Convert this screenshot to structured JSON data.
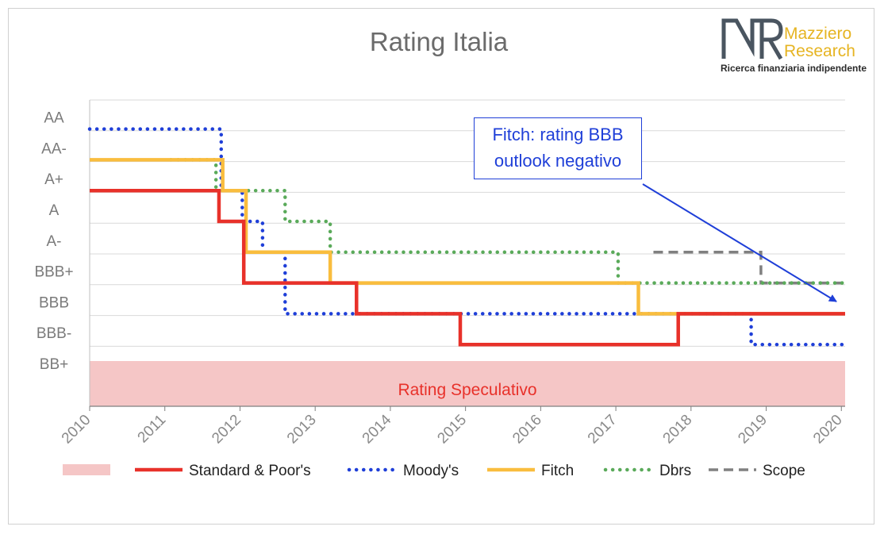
{
  "chart_data": {
    "type": "line",
    "title": "Rating Italia",
    "x_ticks": [
      "2010",
      "2011",
      "2012",
      "2013",
      "2014",
      "2015",
      "2016",
      "2017",
      "2018",
      "2019",
      "2020"
    ],
    "xlim": [
      2010,
      2020.05
    ],
    "y_categories": [
      "BB+",
      "BBB-",
      "BBB",
      "BBB+",
      "A-",
      "A",
      "A+",
      "AA-",
      "AA"
    ],
    "speculative_band": {
      "label": "Rating Speculativo",
      "color": "#f5c6c6",
      "label_color": "#e8312a"
    },
    "series": [
      {
        "name": "Standard & Poor's",
        "color": "#e8312a",
        "style": "solid",
        "steps": [
          [
            2010,
            "A+"
          ],
          [
            2011.72,
            "A"
          ],
          [
            2012.05,
            "BBB+"
          ],
          [
            2013.55,
            "BBB"
          ],
          [
            2014.93,
            "BBB-"
          ],
          [
            2017.83,
            "BBB"
          ],
          [
            2020.05,
            "BBB"
          ]
        ]
      },
      {
        "name": "Moody's",
        "color": "#1f3fd8",
        "style": "dotted",
        "steps": [
          [
            2010,
            "AA"
          ],
          [
            2011.75,
            "A+"
          ],
          [
            2012.03,
            "A"
          ],
          [
            2012.3,
            "A-"
          ],
          [
            2012.6,
            "BBB"
          ],
          [
            2018.8,
            "BBB-"
          ],
          [
            2020.05,
            "BBB-"
          ]
        ]
      },
      {
        "name": "Fitch",
        "color": "#f9bd3e",
        "style": "solid",
        "steps": [
          [
            2010,
            "AA-"
          ],
          [
            2011.77,
            "A+"
          ],
          [
            2012.08,
            "A-"
          ],
          [
            2013.2,
            "BBB+"
          ],
          [
            2017.3,
            "BBB"
          ],
          [
            2020.05,
            "BBB"
          ]
        ]
      },
      {
        "name": "Dbrs",
        "color": "#5aaa5a",
        "style": "dotted",
        "steps": [
          [
            2011.08,
            "AA-"
          ],
          [
            2011.68,
            "A+"
          ],
          [
            2012.6,
            "A"
          ],
          [
            2013.2,
            "A-"
          ],
          [
            2017.03,
            "BBB+"
          ],
          [
            2020.05,
            "BBB+"
          ]
        ]
      },
      {
        "name": "Scope",
        "color": "#808080",
        "style": "dashed",
        "steps": [
          [
            2017.5,
            "A-"
          ],
          [
            2018.93,
            "BBB+"
          ],
          [
            2020.05,
            "BBB+"
          ]
        ]
      }
    ],
    "annotation": {
      "line1": "Fitch: rating BBB",
      "line2": "outlook negativo",
      "color": "#1f3fd8"
    },
    "legend_position": "bottom",
    "grid": true
  },
  "logo": {
    "mark": "MR",
    "name_line1": "Mazziero",
    "name_line2": "Research",
    "tagline": "Ricerca finanziaria indipendente"
  }
}
